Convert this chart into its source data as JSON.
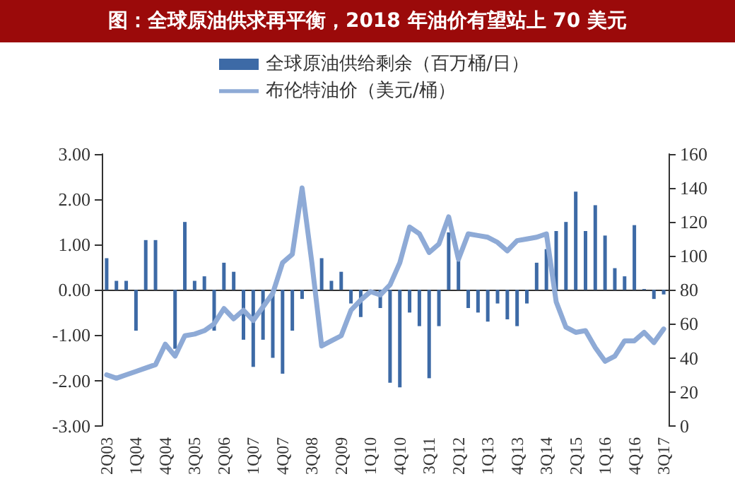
{
  "chart_data": {
    "type": "bar",
    "title": "图：全球原油供求再平衡，2018 年油价有望站上 70 美元",
    "categories": [
      "2Q03",
      null,
      null,
      "1Q04",
      null,
      null,
      "4Q04",
      null,
      null,
      "3Q05",
      null,
      null,
      "2Q06",
      null,
      null,
      "1Q07",
      null,
      null,
      "4Q07",
      null,
      null,
      "3Q08",
      null,
      null,
      "2Q09",
      null,
      null,
      "1Q10",
      null,
      null,
      "4Q10",
      null,
      null,
      "3Q11",
      null,
      null,
      "2Q12",
      null,
      null,
      "1Q13",
      null,
      null,
      "4Q13",
      null,
      null,
      "3Q14",
      null,
      null,
      "2Q15",
      null,
      null,
      "1Q16",
      null,
      null,
      "4Q16",
      null,
      null,
      "3Q17"
    ],
    "series": [
      {
        "name": "全球原油供给剩余（百万桶/日）",
        "color": "#3d6aa6",
        "values": [
          0.7,
          0.2,
          0.2,
          -0.9,
          1.1,
          1.1,
          null,
          -1.3,
          1.5,
          0.2,
          0.3,
          -0.9,
          0.6,
          0.4,
          -1.1,
          -1.7,
          -1.1,
          -1.5,
          -1.85,
          -0.9,
          -0.2,
          null,
          0.7,
          0.2,
          0.4,
          -0.3,
          -0.6,
          null,
          -0.4,
          -2.05,
          -2.15,
          -0.5,
          -0.8,
          -1.95,
          -0.8,
          1.27,
          0.7,
          -0.4,
          -0.5,
          -0.7,
          -0.3,
          -0.65,
          -0.8,
          -0.3,
          0.6,
          0.9,
          1.3,
          1.5,
          2.17,
          1.3,
          1.87,
          1.2,
          0.48,
          0.3,
          1.43,
          0.02,
          -0.2,
          -0.1
        ]
      },
      {
        "name": "布伦特油价（美元/桶）",
        "type": "line",
        "axis": "y2",
        "color": "#8eaad6",
        "values": [
          30,
          28,
          30,
          32,
          34,
          36,
          48,
          41,
          53,
          54,
          56,
          60,
          69,
          63,
          68,
          62,
          70,
          78,
          96,
          101,
          140,
          96,
          47,
          50,
          53,
          68,
          74,
          79,
          77,
          83,
          96,
          117,
          113,
          102,
          107,
          123,
          98,
          113,
          112,
          111,
          108,
          103,
          109,
          110,
          111,
          113,
          73,
          58,
          55,
          56,
          46,
          38,
          41,
          50,
          50,
          55,
          49,
          57
        ]
      }
    ],
    "ylim": [
      -3,
      3
    ],
    "yticks": [
      {
        "value": -3,
        "label": "-3.00"
      },
      {
        "value": -2,
        "label": "-2.00"
      },
      {
        "value": -1,
        "label": "-1.00"
      },
      {
        "value": 0,
        "label": "0.00"
      },
      {
        "value": 1,
        "label": "1.00"
      },
      {
        "value": 2,
        "label": "2.00"
      },
      {
        "value": 3,
        "label": "3.00"
      }
    ],
    "y2lim": [
      0,
      160
    ],
    "y2ticks": [
      0,
      20,
      40,
      60,
      80,
      100,
      120,
      140,
      160
    ],
    "legend": "top",
    "marker": "none",
    "line_style": "solid"
  }
}
